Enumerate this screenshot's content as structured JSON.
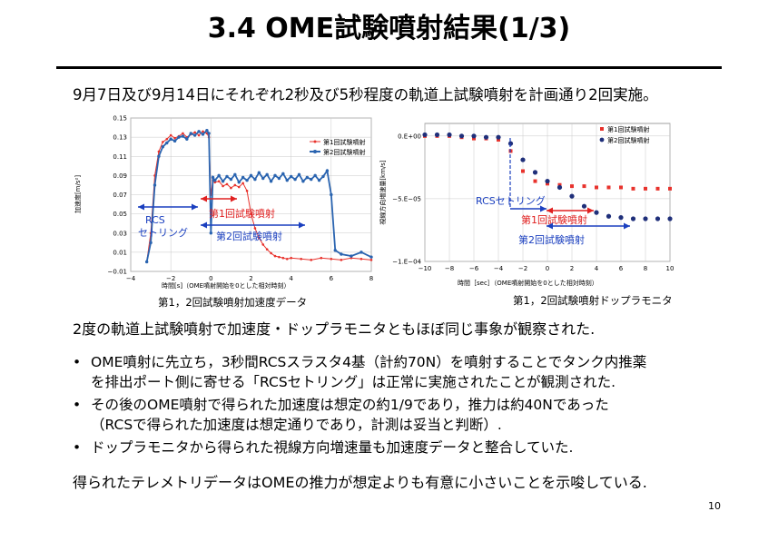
{
  "slide": {
    "title": "3.4 OME試験噴射結果(1/3)",
    "intro": "9月7日及び9月14日にそれぞれ2秒及び5秒程度の軌道上試験噴射を計画通り2回実施。",
    "summary": "2度の軌道上試験噴射で加速度・ドップラモニタともほぼ同じ事象が観察された.",
    "bullets": [
      {
        "lines": [
          "OME噴射に先立ち，3秒間RCSスラスタ4基（計約70N）を噴射することでタンク内推薬",
          "を排出ポート側に寄せる「RCSセトリング」は正常に実施されたことが観測された."
        ]
      },
      {
        "lines": [
          "その後のOME噴射で得られた加速度は想定の約1/9であり，推力は約40Nであった",
          "（RCSで得られた加速度は想定通りであり，計測は妥当と判断）."
        ]
      },
      {
        "lines": [
          "ドップラモニタから得られた視線方向増速量も加速度データと整合していた."
        ]
      }
    ],
    "conclusion": "得られたテレメトリデータはOMEの推力が想定よりも有意に小さいことを示唆している.",
    "page_number": "10"
  },
  "colors": {
    "series1": "#e8322c",
    "series2": "#2a64b0",
    "annot_blue": "#1a3fbf",
    "annot_red": "#e02020",
    "grid": "#c8c8c8"
  },
  "chart_data": [
    {
      "type": "line",
      "caption": "第1，2回試験噴射加速度データ",
      "xlabel": "時間[s]（OME噴射開始を0とした相対時刻）",
      "ylabel": "加速度[m/s²]",
      "xlim": [
        -4,
        8
      ],
      "ylim": [
        -0.01,
        0.15
      ],
      "x_ticks": [
        "−4",
        "−2",
        "0",
        "2",
        "4",
        "6",
        "8"
      ],
      "y_ticks": [
        "−0.01",
        "0.01",
        "0.03",
        "0.05",
        "0.07",
        "0.09",
        "0.11",
        "0.13",
        "0.15"
      ],
      "grid": true,
      "legend_position": "right",
      "series": [
        {
          "name": "第1回試験噴射",
          "x": [
            -3.2,
            -3.0,
            -2.8,
            -2.6,
            -2.4,
            -2.2,
            -2.0,
            -1.8,
            -1.6,
            -1.4,
            -1.2,
            -1.0,
            -0.8,
            -0.6,
            -0.4,
            -0.2,
            -0.1,
            0.0,
            0.1,
            0.2,
            0.4,
            0.6,
            0.8,
            1.0,
            1.2,
            1.4,
            1.6,
            1.8,
            2.0,
            2.2,
            2.4,
            2.6,
            2.8,
            3.0,
            3.2,
            3.4,
            3.6,
            3.8,
            4.0,
            4.5,
            5.0,
            5.5,
            6.0,
            6.5,
            7.0,
            7.5,
            8.0
          ],
          "y": [
            0.0,
            0.03,
            0.09,
            0.115,
            0.125,
            0.128,
            0.132,
            0.129,
            0.131,
            0.134,
            0.13,
            0.133,
            0.135,
            0.132,
            0.136,
            0.134,
            0.13,
            0.07,
            0.085,
            0.083,
            0.084,
            0.079,
            0.081,
            0.077,
            0.08,
            0.078,
            0.082,
            0.074,
            0.05,
            0.035,
            0.025,
            0.018,
            0.013,
            0.009,
            0.006,
            0.005,
            0.004,
            0.003,
            0.004,
            0.003,
            0.002,
            0.004,
            0.003,
            0.002,
            0.004,
            0.003,
            0.002
          ]
        },
        {
          "name": "第2回試験噴射",
          "x": [
            -3.2,
            -3.0,
            -2.8,
            -2.6,
            -2.4,
            -2.2,
            -2.0,
            -1.8,
            -1.6,
            -1.4,
            -1.2,
            -1.0,
            -0.8,
            -0.6,
            -0.4,
            -0.2,
            -0.1,
            0.0,
            0.1,
            0.2,
            0.4,
            0.6,
            0.8,
            1.0,
            1.2,
            1.4,
            1.6,
            1.8,
            2.0,
            2.2,
            2.4,
            2.6,
            2.8,
            3.0,
            3.2,
            3.4,
            3.6,
            3.8,
            4.0,
            4.2,
            4.4,
            4.6,
            4.8,
            5.0,
            5.2,
            5.4,
            5.6,
            5.8,
            6.0,
            6.2,
            6.5,
            7.0,
            7.5,
            8.0
          ],
          "y": [
            0.0,
            0.02,
            0.08,
            0.11,
            0.12,
            0.124,
            0.128,
            0.126,
            0.13,
            0.131,
            0.128,
            0.134,
            0.132,
            0.136,
            0.133,
            0.137,
            0.134,
            0.03,
            0.088,
            0.085,
            0.09,
            0.084,
            0.089,
            0.086,
            0.091,
            0.083,
            0.088,
            0.085,
            0.09,
            0.086,
            0.093,
            0.087,
            0.091,
            0.084,
            0.09,
            0.087,
            0.092,
            0.085,
            0.089,
            0.086,
            0.091,
            0.084,
            0.088,
            0.086,
            0.09,
            0.085,
            0.089,
            0.095,
            0.07,
            0.012,
            0.008,
            0.006,
            0.01,
            0.005
          ]
        }
      ],
      "annotations": {
        "rcs_label_line1": "RCS",
        "rcs_label_line2": "セトリング",
        "burn1_label": "第1回試験噴射",
        "burn2_label": "第2回試験噴射"
      }
    },
    {
      "type": "scatter",
      "caption": "第1，2回試験噴射ドップラモニタ",
      "xlabel": "時間［sec］（OME噴射開始を0とした相対時刻）",
      "ylabel": "視線方向増速量[km/s]",
      "xlim": [
        -10,
        10
      ],
      "ylim": [
        -0.0001,
        1e-05
      ],
      "x_ticks": [
        "−10",
        "−8",
        "−6",
        "−4",
        "−2",
        "0",
        "2",
        "4",
        "6",
        "8",
        "10"
      ],
      "y_ticks": [
        "0.E+00",
        "−5.E−05",
        "−1.E−04"
      ],
      "grid": true,
      "legend_position": "top-right",
      "series": [
        {
          "name": "第1回試験噴射",
          "marker": "square",
          "x": [
            -10,
            -9,
            -8,
            -7,
            -6,
            -5,
            -4,
            -3,
            -2,
            -1,
            0,
            1,
            2,
            3,
            4,
            5,
            6,
            7,
            8,
            9,
            10
          ],
          "y": [
            0.0,
            0.0,
            0.0,
            -1e-06,
            -2e-06,
            -2e-06,
            -3e-06,
            -1.2e-05,
            -2.8e-05,
            -3.6e-05,
            -3.8e-05,
            -3.9e-05,
            -4e-05,
            -4e-05,
            -4.1e-05,
            -4.1e-05,
            -4.1e-05,
            -4.2e-05,
            -4.2e-05,
            -4.2e-05,
            -4.2e-05
          ]
        },
        {
          "name": "第2回試験噴射",
          "marker": "circle",
          "x": [
            -10,
            -9,
            -8,
            -7,
            -6,
            -5,
            -4,
            -3,
            -2,
            -1,
            0,
            1,
            2,
            3,
            4,
            5,
            6,
            7,
            8,
            9,
            10
          ],
          "y": [
            1e-06,
            1e-06,
            1e-06,
            0.0,
            0.0,
            -1e-06,
            -1e-06,
            -6e-06,
            -1.9e-05,
            -2.9e-05,
            -3.6e-05,
            -4.1e-05,
            -4.8e-05,
            -5.6e-05,
            -6.1e-05,
            -6.4e-05,
            -6.5e-05,
            -6.6e-05,
            -6.6e-05,
            -6.6e-05,
            -6.6e-05
          ]
        }
      ],
      "annotations": {
        "rcs_label": "RCSセトリング",
        "burn1_label": "第1回試験噴射",
        "burn2_label": "第2回試験噴射"
      }
    }
  ]
}
